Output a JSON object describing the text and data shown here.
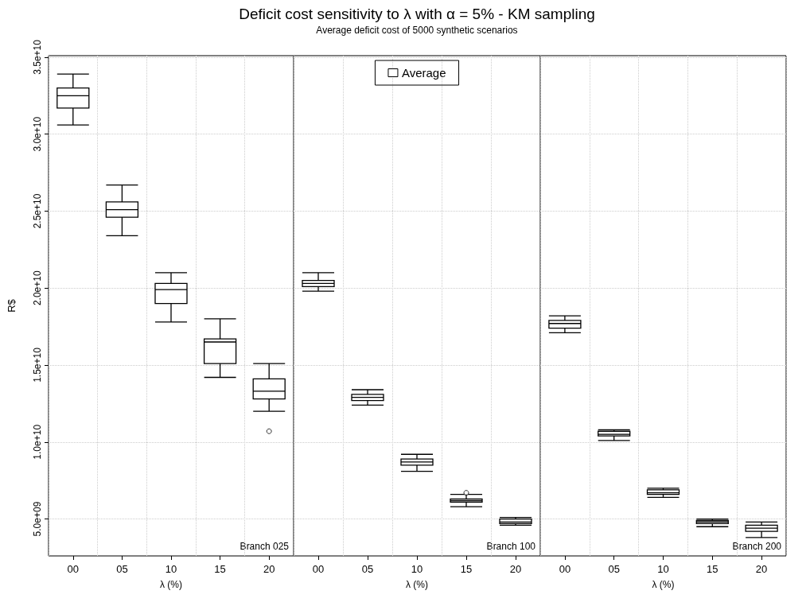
{
  "chart_data": [
    {
      "type": "box",
      "xlabel": "λ (%)",
      "ylabel": "R$",
      "categories": [
        "00",
        "05",
        "10",
        "15",
        "20"
      ],
      "ylim": [
        2600000000.0,
        35100000000.0
      ],
      "yticks": [
        {
          "value": 5000000000.0,
          "label": "5.0e+09"
        },
        {
          "value": 10000000000.0,
          "label": "1.0e+10"
        },
        {
          "value": 15000000000.0,
          "label": "1.5e+10"
        },
        {
          "value": 20000000000.0,
          "label": "2.0e+10"
        },
        {
          "value": 25000000000.0,
          "label": "2.5e+10"
        },
        {
          "value": 30000000000.0,
          "label": "3.0e+10"
        },
        {
          "value": 35000000000.0,
          "label": "3.5e+10"
        }
      ],
      "grid": true,
      "annotations": [
        "Branch 025"
      ],
      "series": [
        {
          "color": "#000000",
          "boxes": [
            {
              "low": 30600000000.0,
              "q1": 31700000000.0,
              "median": 32500000000.0,
              "q3": 33000000000.0,
              "high": 33900000000.0
            },
            {
              "low": 23400000000.0,
              "q1": 24600000000.0,
              "median": 25100000000.0,
              "q3": 25600000000.0,
              "high": 26700000000.0
            },
            {
              "low": 17800000000.0,
              "q1": 19000000000.0,
              "median": 19900000000.0,
              "q3": 20300000000.0,
              "high": 21000000000.0
            },
            {
              "low": 14200000000.0,
              "q1": 15100000000.0,
              "median": 16500000000.0,
              "q3": 16700000000.0,
              "high": 18000000000.0
            },
            {
              "low": 12000000000.0,
              "q1": 12800000000.0,
              "median": 13300000000.0,
              "q3": 14100000000.0,
              "high": 15100000000.0,
              "outliers": [
                10700000000.0
              ]
            }
          ]
        }
      ]
    },
    {
      "type": "box",
      "title": "Deficit cost sensitivity to λ with α = 5% - KM sampling",
      "subtitle": "Average deficit cost of 5000 synthetic scenarios",
      "xlabel": "λ (%)",
      "categories": [
        "00",
        "05",
        "10",
        "15",
        "20"
      ],
      "ylim": [
        2600000000.0,
        35100000000.0
      ],
      "yticks": [
        5000000000.0,
        10000000000.0,
        15000000000.0,
        20000000000.0,
        25000000000.0,
        30000000000.0,
        35000000000.0
      ],
      "tick_labels": "x",
      "grid": true,
      "legend": "top",
      "annotations": [
        "Branch 100"
      ],
      "series": [
        {
          "name": "Average",
          "color": "#000000",
          "boxes": [
            {
              "low": 19800000000.0,
              "q1": 20100000000.0,
              "median": 20300000000.0,
              "q3": 20500000000.0,
              "high": 21000000000.0
            },
            {
              "low": 12400000000.0,
              "q1": 12700000000.0,
              "median": 12900000000.0,
              "q3": 13100000000.0,
              "high": 13400000000.0
            },
            {
              "low": 8100000000.0,
              "q1": 8500000000.0,
              "median": 8700000000.0,
              "q3": 8900000000.0,
              "high": 9200000000.0
            },
            {
              "low": 5800000000.0,
              "q1": 6100000000.0,
              "median": 6200000000.0,
              "q3": 6300000000.0,
              "high": 6600000000.0,
              "outliers": [
                6700000000.0
              ]
            },
            {
              "low": 4600000000.0,
              "q1": 4700000000.0,
              "median": 4800000000.0,
              "q3": 5000000000.0,
              "high": 5100000000.0
            }
          ]
        }
      ]
    },
    {
      "type": "box",
      "xlabel": "λ (%)",
      "categories": [
        "00",
        "05",
        "10",
        "15",
        "20"
      ],
      "ylim": [
        2600000000.0,
        35100000000.0
      ],
      "yticks": [
        5000000000.0,
        10000000000.0,
        15000000000.0,
        20000000000.0,
        25000000000.0,
        30000000000.0,
        35000000000.0
      ],
      "tick_labels": "x",
      "grid": true,
      "annotations": [
        "Branch 200"
      ],
      "series": [
        {
          "color": "#000000",
          "boxes": [
            {
              "low": 17100000000.0,
              "q1": 17400000000.0,
              "median": 17700000000.0,
              "q3": 17900000000.0,
              "high": 18200000000.0
            },
            {
              "low": 10100000000.0,
              "q1": 10400000000.0,
              "median": 10500000000.0,
              "q3": 10700000000.0,
              "high": 10800000000.0
            },
            {
              "low": 6400000000.0,
              "q1": 6600000000.0,
              "median": 6700000000.0,
              "q3": 6900000000.0,
              "high": 7000000000.0
            },
            {
              "low": 4500000000.0,
              "q1": 4700000000.0,
              "median": 4800000000.0,
              "q3": 4900000000.0,
              "high": 5000000000.0
            },
            {
              "low": 3800000000.0,
              "q1": 4200000000.0,
              "median": 4400000000.0,
              "q3": 4600000000.0,
              "high": 4800000000.0
            }
          ]
        }
      ]
    }
  ]
}
